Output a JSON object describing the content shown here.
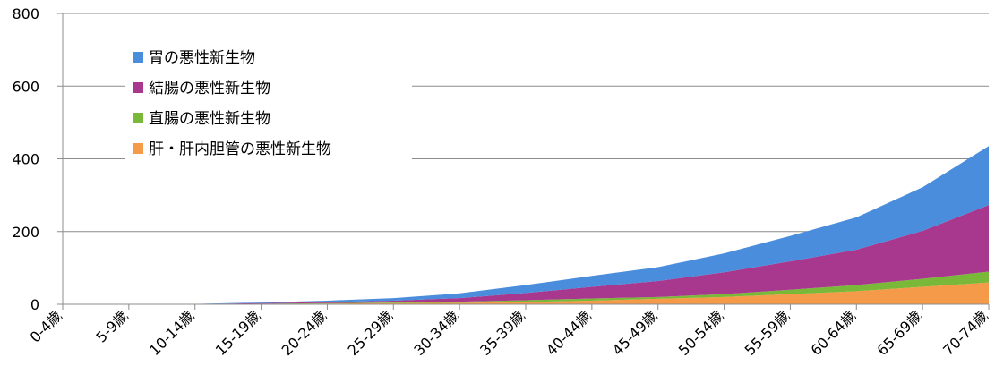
{
  "chart_data": {
    "type": "area",
    "stacked": true,
    "categories": [
      "0-4歳",
      "5-9歳",
      "10-14歳",
      "15-19歳",
      "20-24歳",
      "25-29歳",
      "30-34歳",
      "35-39歳",
      "40-44歳",
      "45-49歳",
      "50-54歳",
      "55-59歳",
      "60-64歳",
      "65-69歳",
      "70-74歳"
    ],
    "series": [
      {
        "name": "肝・肝内胆管の悪性新生物",
        "color": "#f59a48",
        "values": [
          0,
          0,
          0,
          1,
          2,
          3,
          4,
          6,
          10,
          15,
          20,
          28,
          36,
          48,
          60
        ]
      },
      {
        "name": "直腸の悪性新生物",
        "color": "#7ab83a",
        "values": [
          0,
          0,
          0,
          0.5,
          1,
          2,
          3,
          5,
          6,
          5,
          8,
          12,
          17,
          22,
          30
        ]
      },
      {
        "name": "結腸の悪性新生物",
        "color": "#a8378e",
        "values": [
          0,
          0,
          0.5,
          1.5,
          3,
          5,
          10,
          20,
          32,
          44,
          60,
          78,
          97,
          132,
          183
        ]
      },
      {
        "name": "胃の悪性新生物",
        "color": "#4a8ddc",
        "values": [
          0,
          0,
          0.5,
          2,
          4,
          7,
          13,
          22,
          30,
          38,
          52,
          70,
          89,
          120,
          162
        ]
      }
    ],
    "legend_order": [
      3,
      2,
      1,
      0
    ],
    "ylim": [
      0,
      800
    ],
    "yticks": [
      0,
      200,
      400,
      600,
      800
    ],
    "grid": "horizontal",
    "legend_position": "top-left",
    "title": "",
    "xlabel": "",
    "ylabel": ""
  }
}
